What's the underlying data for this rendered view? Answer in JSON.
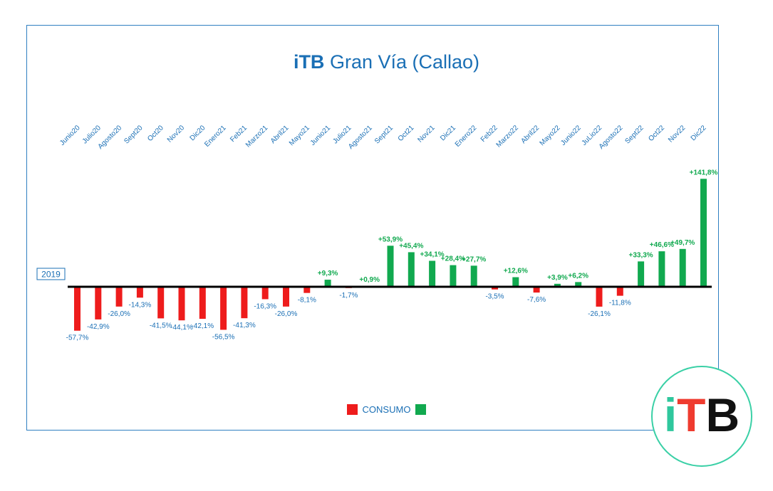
{
  "title": {
    "brand": "iTB",
    "rest": "Gran Vía (Callao)"
  },
  "baseline_label": "2019",
  "legend": {
    "label": "CONSUMO"
  },
  "logo": {
    "i": "i",
    "t": "T",
    "b": "B"
  },
  "colors": {
    "negative": "#ee1c1c",
    "positive": "#11a94f",
    "accent": "#1a6fb5",
    "logo_ring": "#3ad0a6"
  },
  "chart_data": {
    "type": "bar",
    "title": "iTB Gran Vía (Callao)",
    "xlabel": "",
    "ylabel": "",
    "baseline": "2019",
    "categories": [
      "Junio20",
      "Julio20",
      "Agosto20",
      "Sept20",
      "Oct20",
      "Nov20",
      "Dic20",
      "Enero21",
      "Feb21",
      "Marzo21",
      "Abril21",
      "Mayo21",
      "Junio21",
      "Julio21",
      "Agosto21",
      "Sept21",
      "Oct21",
      "Nov21",
      "Dic21",
      "Enero22",
      "Feb22",
      "Marzo22",
      "Abril22",
      "Mayo22",
      "Junio22",
      "JuLio22",
      "Agosto22",
      "Sept22",
      "Oct22",
      "Nov22",
      "Dic22"
    ],
    "values": [
      -57.7,
      -42.9,
      -26.0,
      -14.3,
      -41.5,
      -44.1,
      -42.1,
      -56.5,
      -41.3,
      -16.3,
      -26.0,
      -8.1,
      9.3,
      -1.7,
      0.9,
      53.9,
      45.4,
      34.1,
      28.4,
      27.7,
      -3.5,
      12.6,
      -7.6,
      3.9,
      6.2,
      -26.1,
      -11.8,
      33.3,
      46.6,
      49.7,
      141.8
    ],
    "labels": [
      "-57,7%",
      "-42,9%",
      "-26,0%",
      "-14,3%",
      "-41,5%",
      "-44,1%",
      "-42,1%",
      "-56,5%",
      "-41,3%",
      "-16,3%",
      "-26,0%",
      "-8,1%",
      "+9,3%",
      "-1,7%",
      "+0,9%",
      "+53,9%",
      "+45,4%",
      "+34,1%",
      "+28,4%",
      "+27,7%",
      "-3,5%",
      "+12,6%",
      "-7,6%",
      "+3,9%",
      "+6,2%",
      "-26,1%",
      "-11,8%",
      "+33,3%",
      "+46,6%",
      "+49,7%",
      "+141,8%"
    ],
    "legend_position": "bottom-center",
    "grid": false
  }
}
